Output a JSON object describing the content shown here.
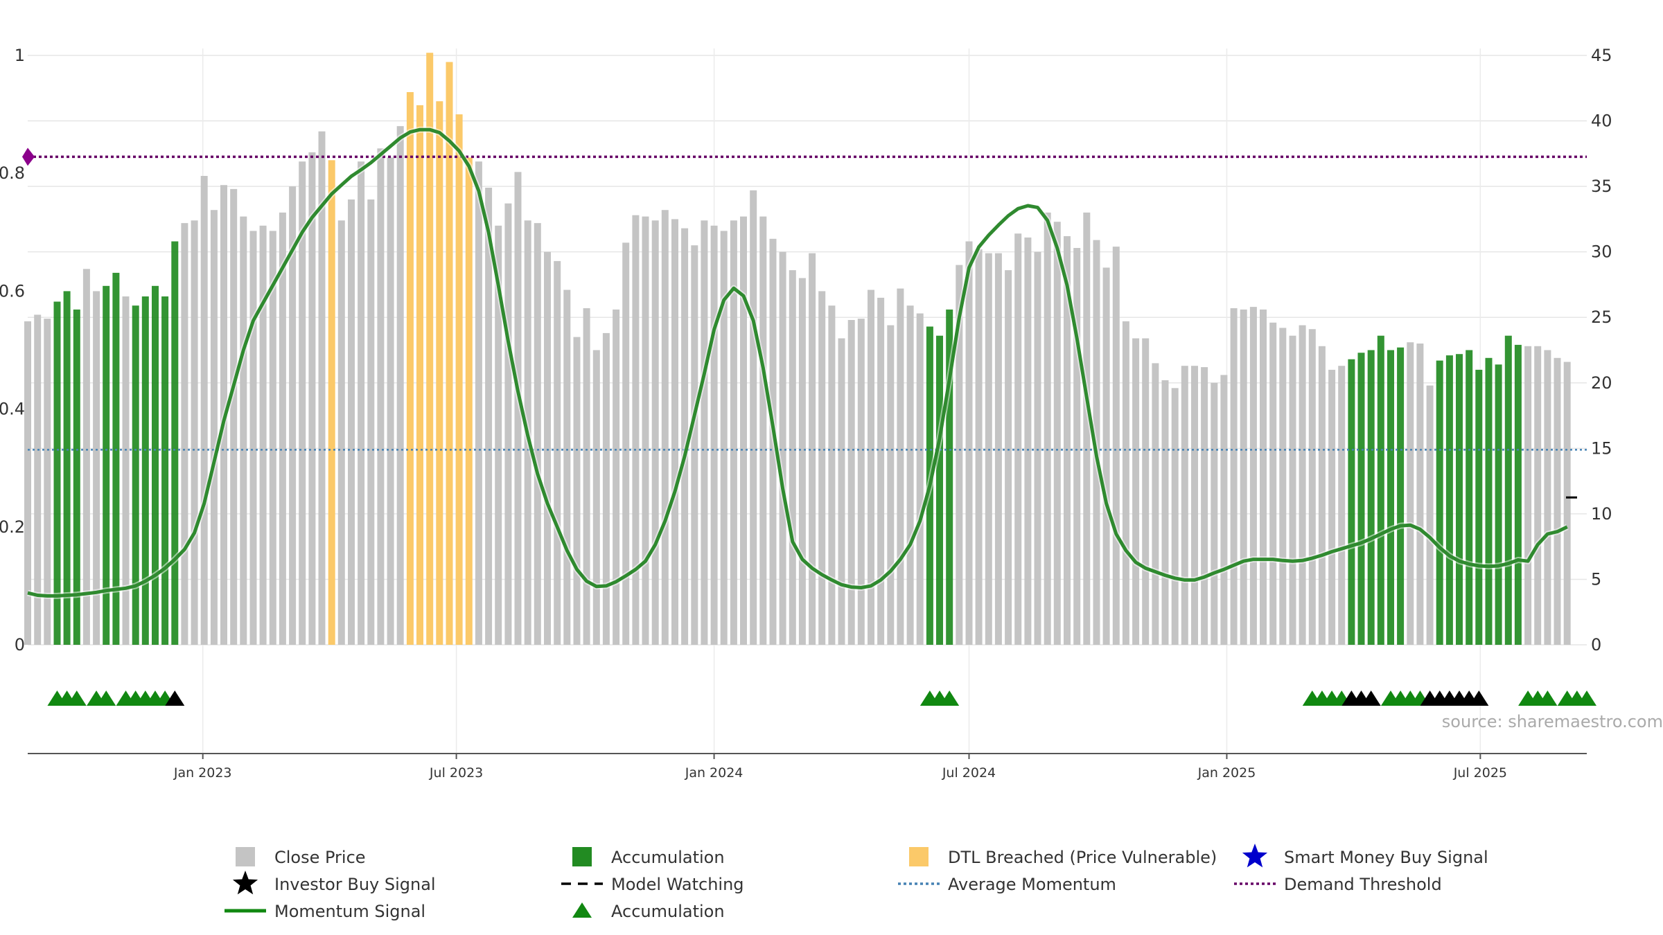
{
  "chart_data": {
    "type": "bar",
    "source_label": "source: sharemaestro.com",
    "left_axis": {
      "ylim": [
        0,
        1
      ],
      "ticks": [
        0,
        0.2,
        0.4,
        0.6,
        0.8,
        1
      ],
      "tick_labels": [
        "0",
        "0.2",
        "0.4",
        "0.6",
        "0.8",
        "1"
      ]
    },
    "right_axis": {
      "ylim": [
        0,
        45
      ],
      "ticks": [
        0,
        5,
        10,
        15,
        20,
        25,
        30,
        35,
        40,
        45
      ],
      "tick_labels": [
        "0",
        "5",
        "10",
        "15",
        "20",
        "25",
        "30",
        "35",
        "40",
        "45"
      ]
    },
    "x_axis": {
      "start": "2022-08-29",
      "end": "2025-09-15",
      "ticks": [
        {
          "date": "2023-01-01",
          "label": "Jan 2023"
        },
        {
          "date": "2023-07-01",
          "label": "Jul 2023"
        },
        {
          "date": "2024-01-01",
          "label": "Jan 2024"
        },
        {
          "date": "2024-07-01",
          "label": "Jul 2024"
        },
        {
          "date": "2025-01-01",
          "label": "Jan 2025"
        },
        {
          "date": "2025-07-01",
          "label": "Jul 2025"
        }
      ]
    },
    "colors": {
      "close_price": "#c4c4c4",
      "accumulation": "#228b22",
      "dtl_breached": "#fbc969",
      "momentum": "#2f8a2f",
      "momentum_strong": "#118811",
      "average_momentum": "#4682b4",
      "demand_threshold": "#660066",
      "demand_marker": "#8b008b",
      "marker_green": "#118811",
      "marker_black": "#000000",
      "smart_money": "#0000cc"
    },
    "first_bar_date": "2022-08-29",
    "bar_interval_days": 7,
    "bar_categories": [
      "close",
      "close",
      "close",
      "acc",
      "acc",
      "acc",
      "close",
      "close",
      "acc",
      "acc",
      "close",
      "acc",
      "acc",
      "acc",
      "acc",
      "acc",
      "close",
      "close",
      "close",
      "close",
      "close",
      "close",
      "close",
      "close",
      "close",
      "close",
      "close",
      "close",
      "close",
      "close",
      "close",
      "dtl",
      "close",
      "close",
      "close",
      "close",
      "close",
      "close",
      "close",
      "dtl",
      "dtl",
      "dtl",
      "dtl",
      "dtl",
      "dtl",
      "dtl",
      "close",
      "close",
      "close",
      "close",
      "close",
      "close",
      "close",
      "close",
      "close",
      "close",
      "close",
      "close",
      "close",
      "close",
      "close",
      "close",
      "close",
      "close",
      "close",
      "close",
      "close",
      "close",
      "close",
      "close",
      "close",
      "close",
      "close",
      "close",
      "close",
      "close",
      "close",
      "close",
      "close",
      "close",
      "close",
      "close",
      "close",
      "close",
      "close",
      "close",
      "close",
      "close",
      "close",
      "close",
      "close",
      "close",
      "acc",
      "acc",
      "acc",
      "close",
      "close",
      "close",
      "close",
      "close",
      "close",
      "close",
      "close",
      "close",
      "close",
      "close",
      "close",
      "close",
      "close",
      "close",
      "close",
      "close",
      "close",
      "close",
      "close",
      "close",
      "close",
      "close",
      "close",
      "close",
      "close",
      "close",
      "close",
      "close",
      "close",
      "close",
      "close",
      "close",
      "close",
      "close",
      "close",
      "close",
      "close",
      "close",
      "close",
      "acc",
      "acc",
      "acc",
      "acc",
      "acc",
      "acc",
      "close",
      "close",
      "close",
      "acc",
      "acc",
      "acc",
      "acc",
      "acc",
      "acc",
      "acc",
      "acc",
      "acc",
      "close",
      "close",
      "close",
      "close",
      "close",
      "close",
      "close",
      "acc",
      "acc",
      "acc",
      "close",
      "acc",
      "acc",
      "acc"
    ],
    "close_price": [
      24.7,
      25.2,
      24.9,
      26.2,
      27.0,
      25.6,
      28.7,
      27.0,
      27.4,
      28.4,
      26.6,
      25.9,
      26.6,
      27.4,
      26.6,
      30.8,
      32.2,
      32.4,
      35.8,
      33.2,
      35.1,
      34.8,
      32.7,
      31.6,
      32.0,
      31.6,
      33.0,
      35.0,
      36.9,
      37.6,
      39.2,
      37.0,
      32.4,
      34.0,
      36.9,
      34.0,
      37.9,
      37.2,
      39.6,
      42.2,
      41.2,
      45.2,
      41.5,
      44.5,
      40.5,
      37.2,
      36.9,
      34.9,
      32.0,
      33.7,
      36.1,
      32.4,
      32.2,
      30.0,
      29.3,
      27.1,
      23.5,
      25.7,
      22.5,
      23.8,
      25.6,
      30.7,
      32.8,
      32.7,
      32.4,
      33.2,
      32.5,
      31.8,
      30.5,
      32.4,
      32.0,
      31.6,
      32.4,
      32.7,
      34.7,
      32.7,
      31.0,
      30.0,
      28.6,
      28.0,
      29.9,
      27.0,
      25.9,
      23.4,
      24.8,
      24.9,
      27.1,
      26.5,
      24.4,
      27.2,
      25.9,
      25.3,
      24.3,
      23.6,
      25.6,
      29.0,
      30.8,
      30.2,
      29.9,
      29.9,
      28.6,
      31.4,
      31.1,
      30.0,
      33.0,
      32.3,
      31.2,
      30.3,
      33.0,
      30.9,
      28.8,
      30.4,
      24.7,
      23.4,
      23.4,
      21.5,
      20.2,
      19.6,
      21.3,
      21.3,
      21.2,
      20.0,
      20.6,
      25.7,
      25.6,
      25.8,
      25.6,
      24.6,
      24.2,
      23.6,
      24.4,
      24.1,
      22.8,
      21.0,
      21.3,
      21.8,
      22.3,
      22.5,
      23.6,
      22.5,
      22.7,
      23.1,
      23.0,
      19.8,
      21.7,
      22.1,
      22.2,
      22.5,
      21.0,
      21.9,
      21.4,
      23.6,
      22.9,
      22.8,
      22.8,
      22.5,
      21.9,
      21.6
    ],
    "momentum_signal": [
      0.088,
      0.084,
      0.083,
      0.083,
      0.084,
      0.085,
      0.087,
      0.089,
      0.092,
      0.094,
      0.096,
      0.1,
      0.108,
      0.118,
      0.13,
      0.145,
      0.162,
      0.19,
      0.24,
      0.31,
      0.38,
      0.44,
      0.5,
      0.55,
      0.58,
      0.61,
      0.64,
      0.67,
      0.7,
      0.725,
      0.745,
      0.765,
      0.78,
      0.795,
      0.806,
      0.818,
      0.832,
      0.846,
      0.86,
      0.87,
      0.874,
      0.874,
      0.869,
      0.855,
      0.838,
      0.812,
      0.77,
      0.7,
      0.61,
      0.515,
      0.43,
      0.355,
      0.29,
      0.24,
      0.2,
      0.16,
      0.128,
      0.108,
      0.099,
      0.1,
      0.107,
      0.117,
      0.128,
      0.142,
      0.17,
      0.21,
      0.26,
      0.32,
      0.39,
      0.46,
      0.535,
      0.585,
      0.605,
      0.592,
      0.55,
      0.47,
      0.37,
      0.265,
      0.175,
      0.145,
      0.13,
      0.119,
      0.11,
      0.102,
      0.098,
      0.097,
      0.1,
      0.11,
      0.125,
      0.145,
      0.17,
      0.21,
      0.27,
      0.35,
      0.45,
      0.555,
      0.64,
      0.675,
      0.695,
      0.712,
      0.728,
      0.74,
      0.745,
      0.742,
      0.72,
      0.673,
      0.61,
      0.52,
      0.42,
      0.32,
      0.24,
      0.188,
      0.16,
      0.14,
      0.13,
      0.124,
      0.118,
      0.113,
      0.11,
      0.11,
      0.115,
      0.122,
      0.128,
      0.135,
      0.142,
      0.145,
      0.145,
      0.145,
      0.143,
      0.142,
      0.143,
      0.147,
      0.152,
      0.158,
      0.163,
      0.168,
      0.173,
      0.18,
      0.188,
      0.196,
      0.202,
      0.203,
      0.196,
      0.182,
      0.165,
      0.151,
      0.142,
      0.137,
      0.134,
      0.133,
      0.134,
      0.138,
      0.144,
      0.142,
      0.17,
      0.188,
      0.192,
      0.2
    ],
    "average_momentum": 0.331,
    "demand_threshold": 0.828,
    "model_watching_value": 0.25,
    "signal_markers": [
      {
        "type": "accumulation",
        "dates": [
          "2022-09-19",
          "2022-09-26",
          "2022-10-03",
          "2022-10-17",
          "2022-10-24",
          "2022-11-07",
          "2022-11-14",
          "2022-11-21",
          "2022-11-28",
          "2022-12-05",
          "2024-06-03",
          "2024-06-10",
          "2024-06-17",
          "2025-03-03",
          "2025-03-10",
          "2025-03-17",
          "2025-03-24",
          "2025-04-28",
          "2025-05-05",
          "2025-05-12",
          "2025-05-19",
          "2025-08-04",
          "2025-08-11",
          "2025-08-18",
          "2025-09-01",
          "2025-09-08",
          "2025-09-15"
        ]
      },
      {
        "type": "investor_buy",
        "dates": [
          "2022-12-12",
          "2025-03-31",
          "2025-04-07",
          "2025-04-14",
          "2025-05-26",
          "2025-06-02",
          "2025-06-09",
          "2025-06-16",
          "2025-06-23",
          "2025-06-30"
        ]
      }
    ],
    "legend": [
      {
        "key": "close",
        "label": "Close Price"
      },
      {
        "key": "acc_bar",
        "label": "Accumulation"
      },
      {
        "key": "dtl",
        "label": "DTL Breached (Price Vulnerable)"
      },
      {
        "key": "smart",
        "label": "Smart Money Buy Signal"
      },
      {
        "key": "investor",
        "label": "Investor Buy Signal"
      },
      {
        "key": "watching",
        "label": "Model Watching"
      },
      {
        "key": "avg",
        "label": "Average Momentum"
      },
      {
        "key": "demand",
        "label": "Demand Threshold"
      },
      {
        "key": "momentum",
        "label": "Momentum Signal"
      },
      {
        "key": "acc_marker",
        "label": "Accumulation"
      }
    ]
  }
}
